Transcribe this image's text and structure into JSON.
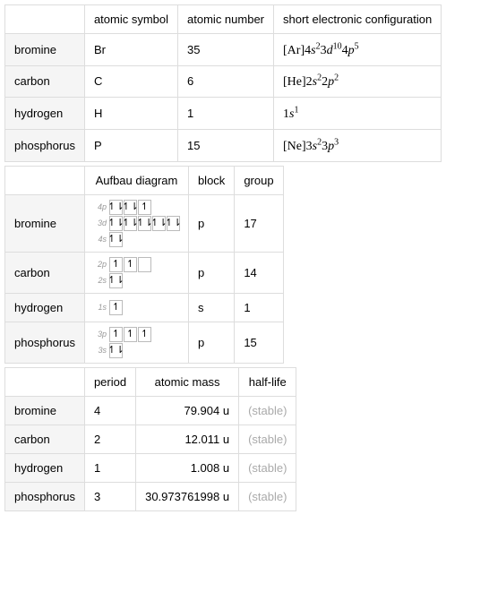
{
  "table1": {
    "headers": [
      "atomic symbol",
      "atomic number",
      "short electronic configuration"
    ],
    "rows": [
      {
        "name": "bromine",
        "symbol": "Br",
        "number": "35",
        "config_prefix": "[Ar]",
        "config_parts": [
          [
            "4",
            "s",
            "2"
          ],
          [
            "3",
            "d",
            "10"
          ],
          [
            "4",
            "p",
            "5"
          ]
        ]
      },
      {
        "name": "carbon",
        "symbol": "C",
        "number": "6",
        "config_prefix": "[He]",
        "config_parts": [
          [
            "2",
            "s",
            "2"
          ],
          [
            "2",
            "p",
            "2"
          ]
        ]
      },
      {
        "name": "hydrogen",
        "symbol": "H",
        "number": "1",
        "config_prefix": "",
        "config_parts": [
          [
            "1",
            "s",
            "1"
          ]
        ]
      },
      {
        "name": "phosphorus",
        "symbol": "P",
        "number": "15",
        "config_prefix": "[Ne]",
        "config_parts": [
          [
            "3",
            "s",
            "2"
          ],
          [
            "3",
            "p",
            "3"
          ]
        ]
      }
    ]
  },
  "table2": {
    "headers": [
      "Aufbau diagram",
      "block",
      "group"
    ],
    "rows": [
      {
        "name": "bromine",
        "block": "p",
        "group": "17",
        "orbitals": [
          {
            "label": "4p",
            "boxes": [
              "ud",
              "ud",
              "u"
            ]
          },
          {
            "label": "3d",
            "boxes": [
              "ud",
              "ud",
              "ud",
              "ud",
              "ud"
            ]
          },
          {
            "label": "4s",
            "boxes": [
              "ud"
            ]
          }
        ]
      },
      {
        "name": "carbon",
        "block": "p",
        "group": "14",
        "orbitals": [
          {
            "label": "2p",
            "boxes": [
              "u",
              "u",
              ""
            ]
          },
          {
            "label": "2s",
            "boxes": [
              "ud"
            ]
          }
        ]
      },
      {
        "name": "hydrogen",
        "block": "s",
        "group": "1",
        "orbitals": [
          {
            "label": "1s",
            "boxes": [
              "u"
            ]
          }
        ]
      },
      {
        "name": "phosphorus",
        "block": "p",
        "group": "15",
        "orbitals": [
          {
            "label": "3p",
            "boxes": [
              "u",
              "u",
              "u"
            ]
          },
          {
            "label": "3s",
            "boxes": [
              "ud"
            ]
          }
        ]
      }
    ]
  },
  "table3": {
    "headers": [
      "period",
      "atomic mass",
      "half-life"
    ],
    "rows": [
      {
        "name": "bromine",
        "period": "4",
        "mass": "79.904 u",
        "halflife": "(stable)"
      },
      {
        "name": "carbon",
        "period": "2",
        "mass": "12.011 u",
        "halflife": "(stable)"
      },
      {
        "name": "hydrogen",
        "period": "1",
        "mass": "1.008 u",
        "halflife": "(stable)"
      },
      {
        "name": "phosphorus",
        "period": "3",
        "mass": "30.973761998 u",
        "halflife": "(stable)"
      }
    ]
  }
}
